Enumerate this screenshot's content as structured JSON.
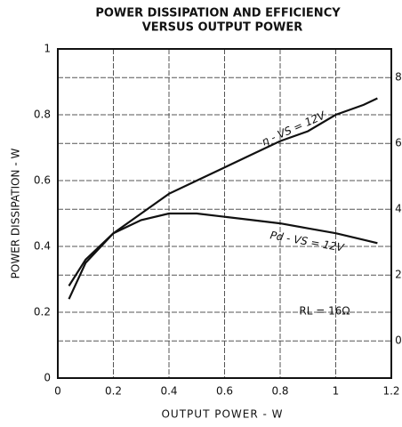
{
  "chart_data": {
    "type": "line",
    "title": "POWER DISSIPATION AND EFFICIENCY",
    "subtitle": "VERSUS OUTPUT POWER",
    "xlabel": "OUTPUT POWER - W",
    "ylabel": "POWER DISSIPATION - W",
    "x": [
      0.04,
      0.1,
      0.2,
      0.3,
      0.4,
      0.5,
      0.6,
      0.7,
      0.8,
      0.9,
      1.0,
      1.1,
      1.15
    ],
    "series": [
      {
        "name": "η - VS = 12V",
        "color": "#111111",
        "axis": "y2",
        "values": [
          1.27,
          2.37,
          3.27,
          3.87,
          4.47,
          4.87,
          5.27,
          5.67,
          6.07,
          6.37,
          6.87,
          7.17,
          7.37
        ]
      },
      {
        "name": "Pd - VS = 12V",
        "color": "#111111",
        "axis": "y",
        "values": [
          0.28,
          0.36,
          0.44,
          0.48,
          0.5,
          0.5,
          0.49,
          0.48,
          0.47,
          0.455,
          0.44,
          0.42,
          0.41
        ]
      }
    ],
    "annotations": [
      "RL = 16Ω"
    ],
    "xlim": [
      0,
      1.2
    ],
    "xticks": [
      0,
      0.2,
      0.4,
      0.6,
      0.8,
      1,
      1.2
    ],
    "ylim": [
      0,
      1
    ],
    "yticks": [
      0,
      0.2,
      0.4,
      0.6,
      0.8,
      1
    ],
    "y2lim": [
      -1.13,
      8.87
    ],
    "y2ticks": [
      0,
      2,
      4,
      6,
      8
    ],
    "grid": true
  }
}
